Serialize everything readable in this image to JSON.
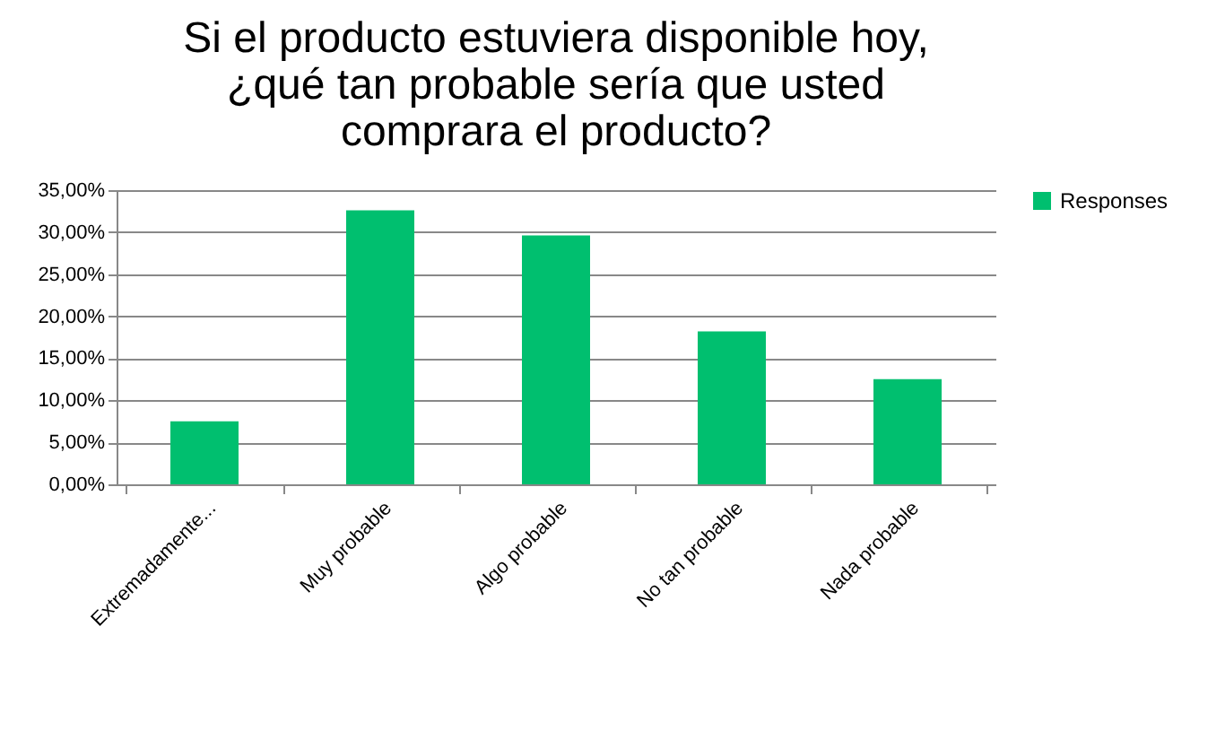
{
  "chart_data": {
    "type": "bar",
    "title": "Si el producto estuviera disponible hoy, ¿qué tan probable sería que usted comprara el producto?",
    "categories": [
      "Extremadamente...",
      "Muy probable",
      "Algo probable",
      "No tan probable",
      "Nada probable"
    ],
    "series": [
      {
        "name": "Responses",
        "color": "#00bf6f",
        "values": [
          7.5,
          32.6,
          29.6,
          18.2,
          12.5
        ]
      }
    ],
    "ylim": [
      0,
      35
    ],
    "yticks": [
      {
        "value": 0,
        "label": "0,00%"
      },
      {
        "value": 5,
        "label": "5,00%"
      },
      {
        "value": 10,
        "label": "10,00%"
      },
      {
        "value": 15,
        "label": "15,00%"
      },
      {
        "value": 20,
        "label": "20,00%"
      },
      {
        "value": 25,
        "label": "25,00%"
      },
      {
        "value": 30,
        "label": "30,00%"
      },
      {
        "value": 35,
        "label": "35,00%"
      }
    ],
    "grid": "y",
    "legend": "right"
  }
}
